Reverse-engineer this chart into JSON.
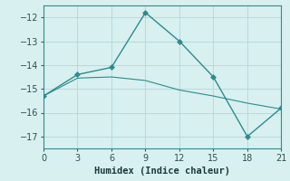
{
  "x": [
    0,
    3,
    6,
    9,
    12,
    15,
    18,
    21
  ],
  "y_main": [
    -15.3,
    -14.4,
    -14.1,
    -11.8,
    -13.0,
    -14.5,
    -17.0,
    -15.8
  ],
  "y_trend": [
    -15.3,
    -14.55,
    -14.5,
    -14.65,
    -15.05,
    -15.3,
    -15.6,
    -15.85
  ],
  "line_color": "#2e8b8b",
  "bg_color": "#d8f0f0",
  "grid_color": "#b0d8d8",
  "xlabel": "Humidex (Indice chaleur)",
  "xlim": [
    0,
    21
  ],
  "ylim": [
    -17.5,
    -11.5
  ],
  "xticks": [
    0,
    3,
    6,
    9,
    12,
    15,
    18,
    21
  ],
  "yticks": [
    -17,
    -16,
    -15,
    -14,
    -13,
    -12
  ]
}
